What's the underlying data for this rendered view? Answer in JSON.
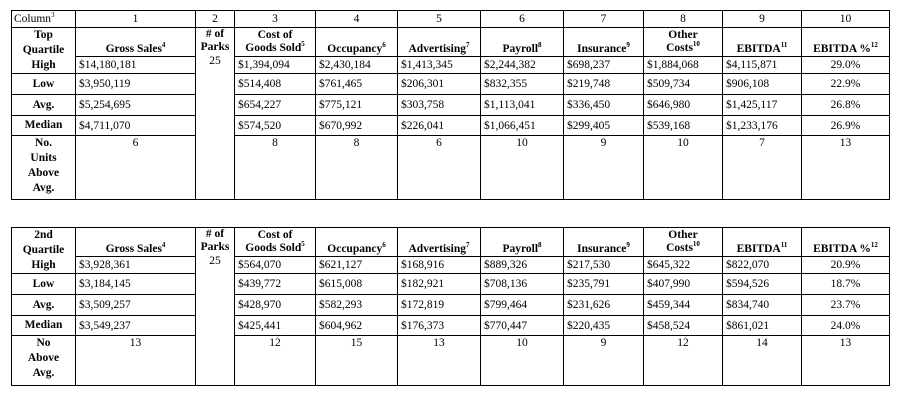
{
  "column_row": {
    "label": "Column",
    "label_sup": "3",
    "numbers": [
      "1",
      "2",
      "3",
      "4",
      "5",
      "6",
      "7",
      "8",
      "9",
      "10"
    ]
  },
  "headers": {
    "gross_sales": "Gross Sales",
    "gross_sales_sup": "4",
    "parks_line1": "# of",
    "parks_line2": "Parks",
    "cogs_line1": "Cost of",
    "cogs_line2": "Goods Sold",
    "cogs_sup": "5",
    "occupancy": "Occupancy",
    "occupancy_sup": "6",
    "advertising": "Advertising",
    "advertising_sup": "7",
    "payroll": "Payroll",
    "payroll_sup": "8",
    "insurance": "Insurance",
    "insurance_sup": "9",
    "other_line1": "Other",
    "other_line2": "Costs",
    "other_sup": "10",
    "ebitda": "EBITDA",
    "ebitda_sup": "11",
    "ebitda_pct": "EBITDA %",
    "ebitda_pct_sup": "12"
  },
  "tables": [
    {
      "quartile_line1": "Top",
      "quartile_line2": "Quartile",
      "parks": "25",
      "rows": [
        {
          "label": "High",
          "gross_sales": "$14,180,181",
          "cogs": "$1,394,094",
          "occupancy": "$2,430,184",
          "advertising": "$1,413,345",
          "payroll": "$2,244,382",
          "insurance": "$698,237",
          "other_costs": "$1,884,068",
          "ebitda": "$4,115,871",
          "ebitda_pct": "29.0%"
        },
        {
          "label": "Low",
          "gross_sales": "$3,950,119",
          "cogs": "$514,408",
          "occupancy": "$761,465",
          "advertising": "$206,301",
          "payroll": "$832,355",
          "insurance": "$219,748",
          "other_costs": "$509,734",
          "ebitda": "$906,108",
          "ebitda_pct": "22.9%"
        },
        {
          "label": "Avg.",
          "gross_sales": "$5,254,695",
          "cogs": "$654,227",
          "occupancy": "$775,121",
          "advertising": "$303,758",
          "payroll": "$1,113,041",
          "insurance": "$336,450",
          "other_costs": "$646,980",
          "ebitda": "$1,425,117",
          "ebitda_pct": "26.8%"
        },
        {
          "label": "Median",
          "gross_sales": "$4,711,070",
          "cogs": "$574,520",
          "occupancy": "$670,992",
          "advertising": "$226,041",
          "payroll": "$1,066,451",
          "insurance": "$299,405",
          "other_costs": "$539,168",
          "ebitda": "$1,233,176",
          "ebitda_pct": "26.9%"
        }
      ],
      "units_label_lines": [
        "No.",
        "Units",
        "Above",
        "Avg."
      ],
      "units": {
        "gross_sales": "6",
        "cogs": "8",
        "occupancy": "8",
        "advertising": "6",
        "payroll": "10",
        "insurance": "9",
        "other_costs": "10",
        "ebitda": "7",
        "ebitda_pct": "13"
      }
    },
    {
      "quartile_line1": "2nd",
      "quartile_line2": "Quartile",
      "parks": "25",
      "rows": [
        {
          "label": "High",
          "gross_sales": "$3,928,361",
          "cogs": "$564,070",
          "occupancy": "$621,127",
          "advertising": "$168,916",
          "payroll": "$889,326",
          "insurance": "$217,530",
          "other_costs": "$645,322",
          "ebitda": "$822,070",
          "ebitda_pct": "20.9%"
        },
        {
          "label": "Low",
          "gross_sales": "$3,184,145",
          "cogs": "$439,772",
          "occupancy": "$615,008",
          "advertising": "$182,921",
          "payroll": "$708,136",
          "insurance": "$235,791",
          "other_costs": "$407,990",
          "ebitda": "$594,526",
          "ebitda_pct": "18.7%"
        },
        {
          "label": "Avg.",
          "gross_sales": "$3,509,257",
          "cogs": "$428,970",
          "occupancy": "$582,293",
          "advertising": "$172,819",
          "payroll": "$799,464",
          "insurance": "$231,626",
          "other_costs": "$459,344",
          "ebitda": "$834,740",
          "ebitda_pct": "23.7%"
        },
        {
          "label": "Median",
          "gross_sales": "$3,549,237",
          "cogs": "$425,441",
          "occupancy": "$604,962",
          "advertising": "$176,373",
          "payroll": "$770,447",
          "insurance": "$220,435",
          "other_costs": "$458,524",
          "ebitda": "$861,021",
          "ebitda_pct": "24.0%"
        }
      ],
      "units_label_lines": [
        "No",
        "Above",
        "Avg."
      ],
      "units": {
        "gross_sales": "13",
        "cogs": "12",
        "occupancy": "15",
        "advertising": "13",
        "payroll": "10",
        "insurance": "9",
        "other_costs": "12",
        "ebitda": "14",
        "ebitda_pct": "13"
      }
    }
  ]
}
